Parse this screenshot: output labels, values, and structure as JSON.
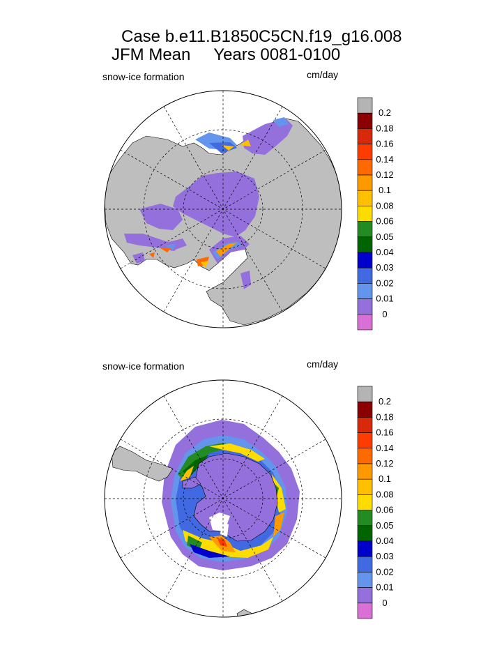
{
  "title": {
    "line1": "Case b.e11.B1850C5CN.f19_g16.008",
    "line2": "JFM Mean     Years 0081-0100"
  },
  "panels": [
    {
      "id": "north",
      "hemisphere": "Northern",
      "variable_label": "snow-ice formation",
      "units_label": "cm/day"
    },
    {
      "id": "south",
      "hemisphere": "Southern",
      "variable_label": "snow-ice formation",
      "units_label": "cm/day"
    }
  ],
  "colorbar": {
    "levels": [
      "0.2",
      "0.18",
      "0.16",
      "0.14",
      "0.12",
      "0.1",
      "0.08",
      "0.06",
      "0.05",
      "0.04",
      "0.03",
      "0.02",
      "0.01",
      "0"
    ],
    "colors": [
      "#b4b4b4",
      "#8b0000",
      "#d82a0a",
      "#ff3c00",
      "#ff6a00",
      "#ff9900",
      "#ffc000",
      "#ffdc00",
      "#228b22",
      "#006400",
      "#0000cd",
      "#4169e1",
      "#6495ed",
      "#9370db",
      "#da70d6"
    ]
  },
  "colors": {
    "land": "#bebebe",
    "ice_low": "#9370db",
    "frame": "#000000",
    "ocean": "#ffffff"
  }
}
